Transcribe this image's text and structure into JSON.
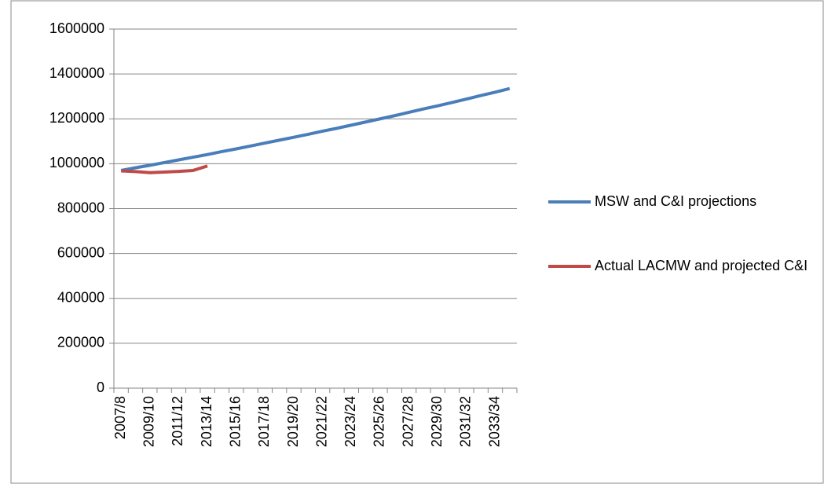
{
  "chart_data": {
    "type": "line",
    "categories": [
      "2007/8",
      null,
      "2009/10",
      null,
      "2011/12",
      null,
      "2013/14",
      null,
      "2015/16",
      null,
      "2017/18",
      null,
      "2019/20",
      null,
      "2021/22",
      null,
      "2023/24",
      null,
      "2025/26",
      null,
      "2027/28",
      null,
      "2029/30",
      null,
      "2031/32",
      null,
      "2033/34",
      null
    ],
    "series": [
      {
        "name": "MSW and C&I projections",
        "color": "#4a7ebb",
        "values": [
          970000,
          982000,
          993000,
          1005000,
          1017000,
          1029000,
          1041000,
          1054000,
          1066000,
          1079000,
          1092000,
          1105000,
          1118000,
          1131000,
          1145000,
          1158000,
          1172000,
          1186000,
          1200000,
          1214000,
          1229000,
          1244000,
          1258000,
          1273000,
          1288000,
          1304000,
          1319000,
          1335000
        ]
      },
      {
        "name": "Actual LACMW and projected C&I",
        "color": "#be4b48",
        "values": [
          968000,
          965000,
          960000,
          963000,
          966000,
          970000,
          990000,
          null,
          null,
          null,
          null,
          null,
          null,
          null,
          null,
          null,
          null,
          null,
          null,
          null,
          null,
          null,
          null,
          null,
          null,
          null,
          null,
          null
        ]
      }
    ],
    "ylim": [
      0,
      1600000
    ],
    "yticks": [
      0,
      200000,
      400000,
      600000,
      800000,
      1000000,
      1200000,
      1400000,
      1600000
    ],
    "grid": true
  }
}
